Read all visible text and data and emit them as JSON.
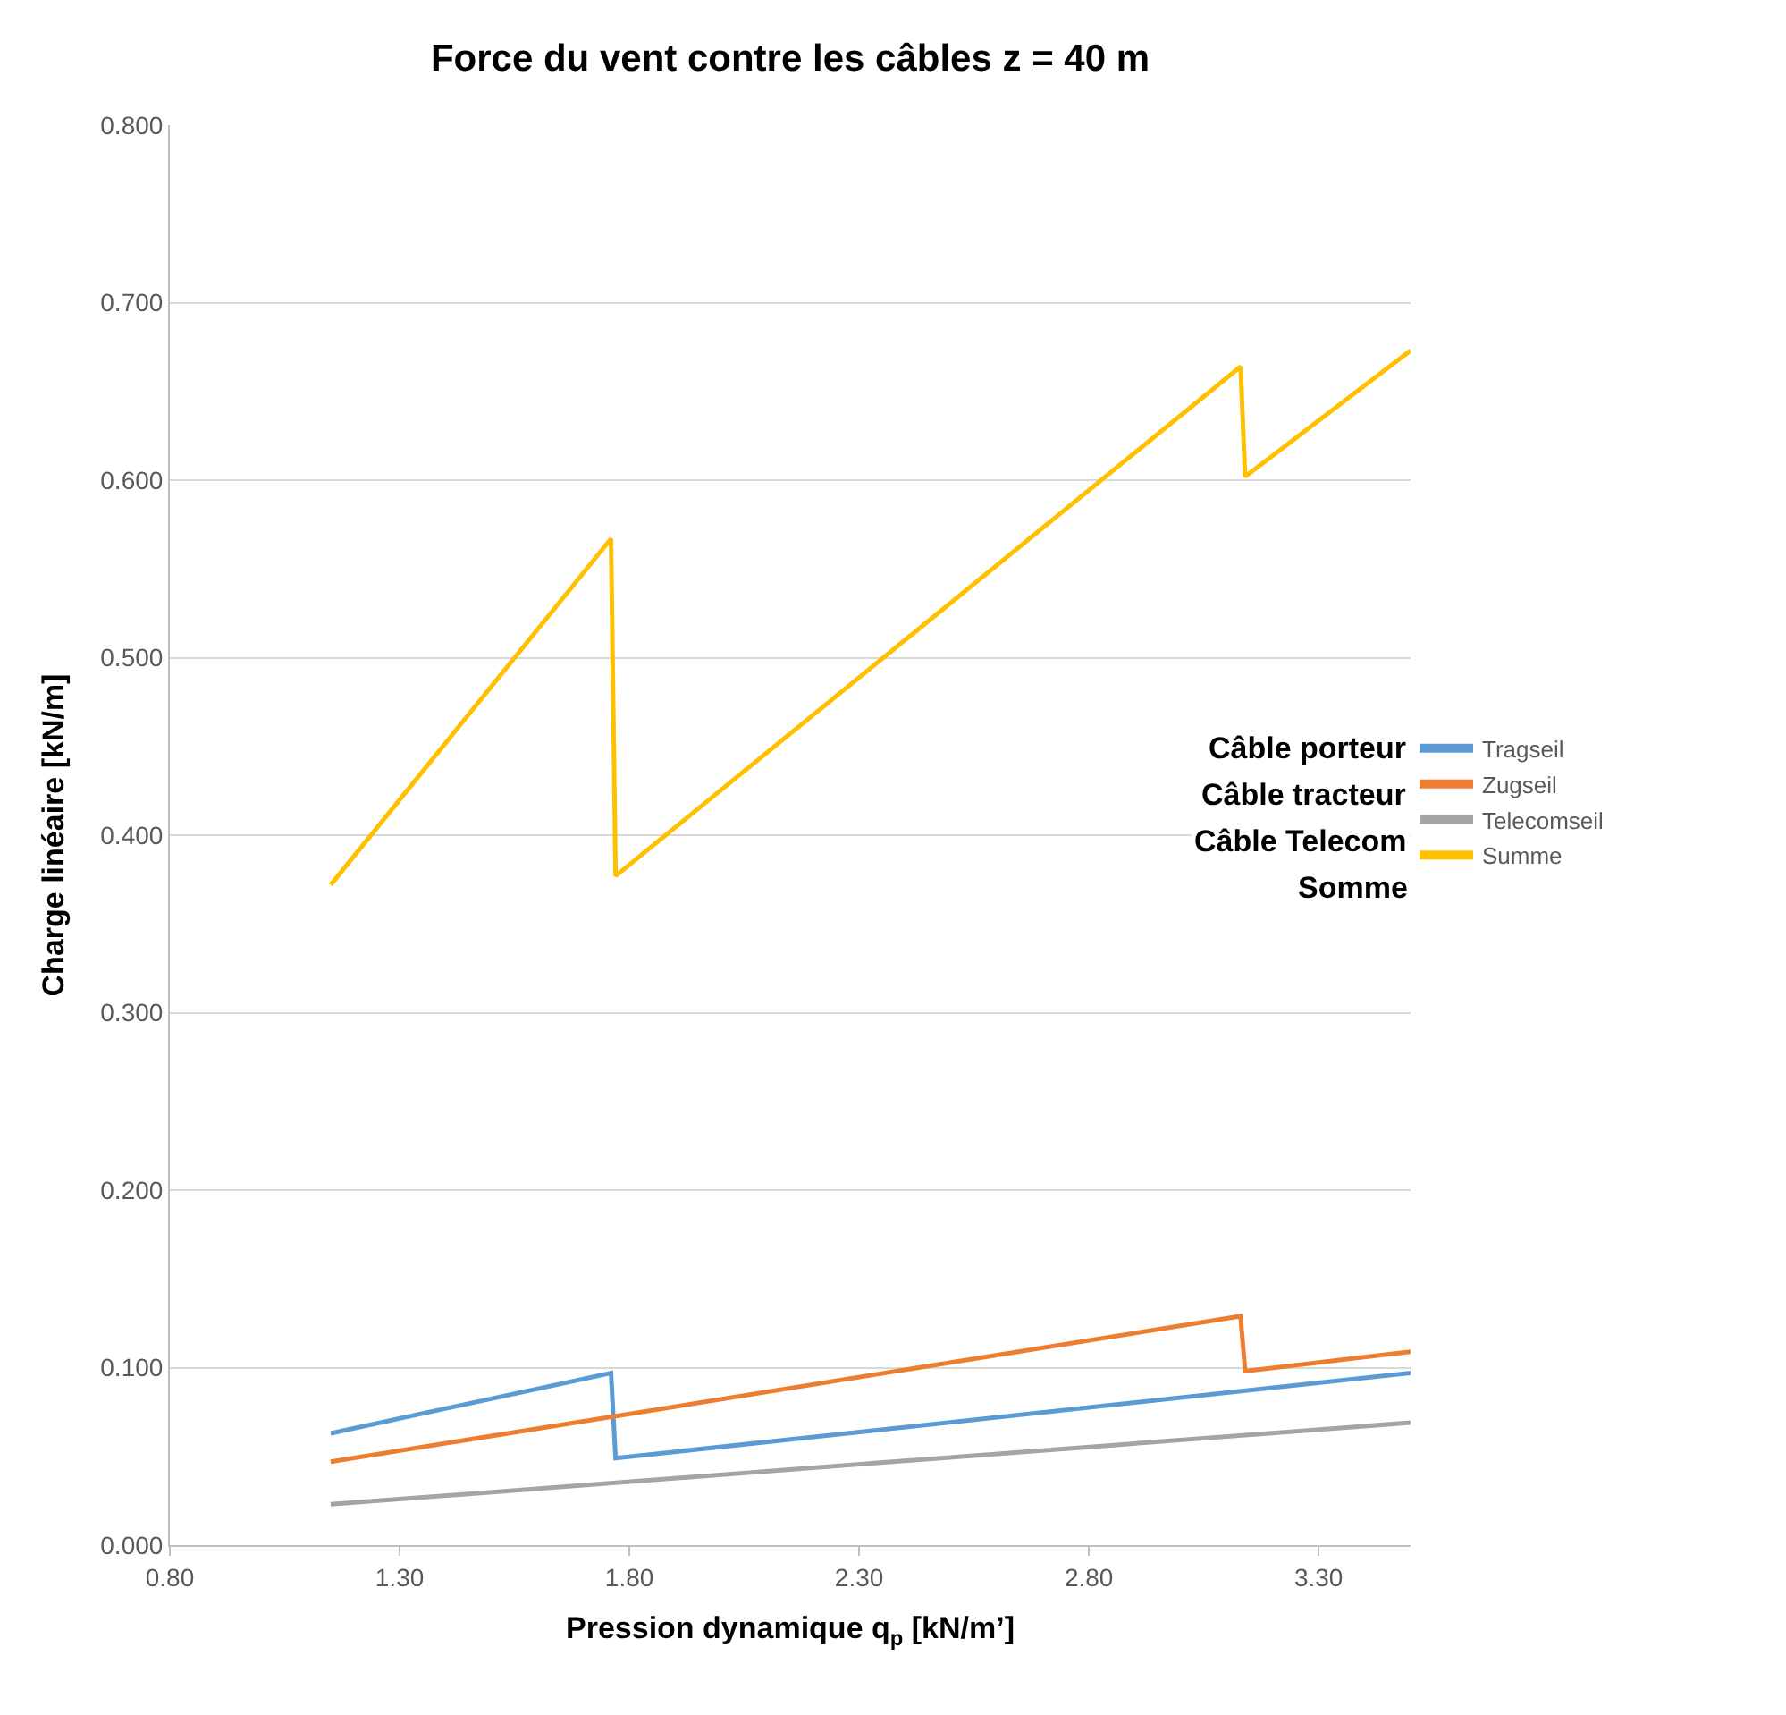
{
  "chart_data": {
    "type": "line",
    "title": "Force du vent contre les câbles z = 40 m",
    "xlabel": "Pression dynamique q$_{p}$ [kN/m’]",
    "ylabel": "Charge linéaire [kN/m]",
    "xlim": [
      0.8,
      3.5
    ],
    "xticks": [
      {
        "value": 0.8,
        "label": "0.80"
      },
      {
        "value": 1.3,
        "label": "1.30"
      },
      {
        "value": 1.8,
        "label": "1.80"
      },
      {
        "value": 2.3,
        "label": "2.30"
      },
      {
        "value": 2.8,
        "label": "2.80"
      },
      {
        "value": 3.3,
        "label": "3.30"
      }
    ],
    "ylim": [
      0,
      0.8
    ],
    "yticks": [
      {
        "value": 0,
        "label": "0.000"
      },
      {
        "value": 0.1,
        "label": "0.100"
      },
      {
        "value": 0.2,
        "label": "0.200"
      },
      {
        "value": 0.3,
        "label": "0.300"
      },
      {
        "value": 0.4,
        "label": "0.400"
      },
      {
        "value": 0.5,
        "label": "0.500"
      },
      {
        "value": 0.6,
        "label": "0.600"
      },
      {
        "value": 0.7,
        "label": "0.700"
      },
      {
        "value": 0.8,
        "label": "0.800"
      }
    ],
    "grid": "y",
    "legend": "right",
    "marker": "none",
    "line_style": "solid",
    "annotations": [
      "Câble porteur",
      "Câble tracteur",
      "Câble Telecom",
      "Somme"
    ],
    "series": [
      {
        "name": "Tragseil",
        "color": "#5b9bd5",
        "x": [
          1.15,
          1.76,
          1.77,
          3.5
        ],
        "values": [
          0.063,
          0.097,
          0.049,
          0.097
        ]
      },
      {
        "name": "Zugseil",
        "color": "#ed7d31",
        "x": [
          1.15,
          3.13,
          3.14,
          3.5
        ],
        "values": [
          0.047,
          0.129,
          0.098,
          0.109
        ]
      },
      {
        "name": "Telecomseil",
        "color": "#a5a5a5",
        "x": [
          1.15,
          3.5
        ],
        "values": [
          0.023,
          0.069
        ]
      },
      {
        "name": "Summe",
        "color": "#ffc000",
        "x": [
          1.15,
          1.76,
          1.77,
          3.13,
          3.14,
          3.5
        ],
        "values": [
          0.372,
          0.567,
          0.377,
          0.664,
          0.602,
          0.673
        ]
      }
    ]
  }
}
